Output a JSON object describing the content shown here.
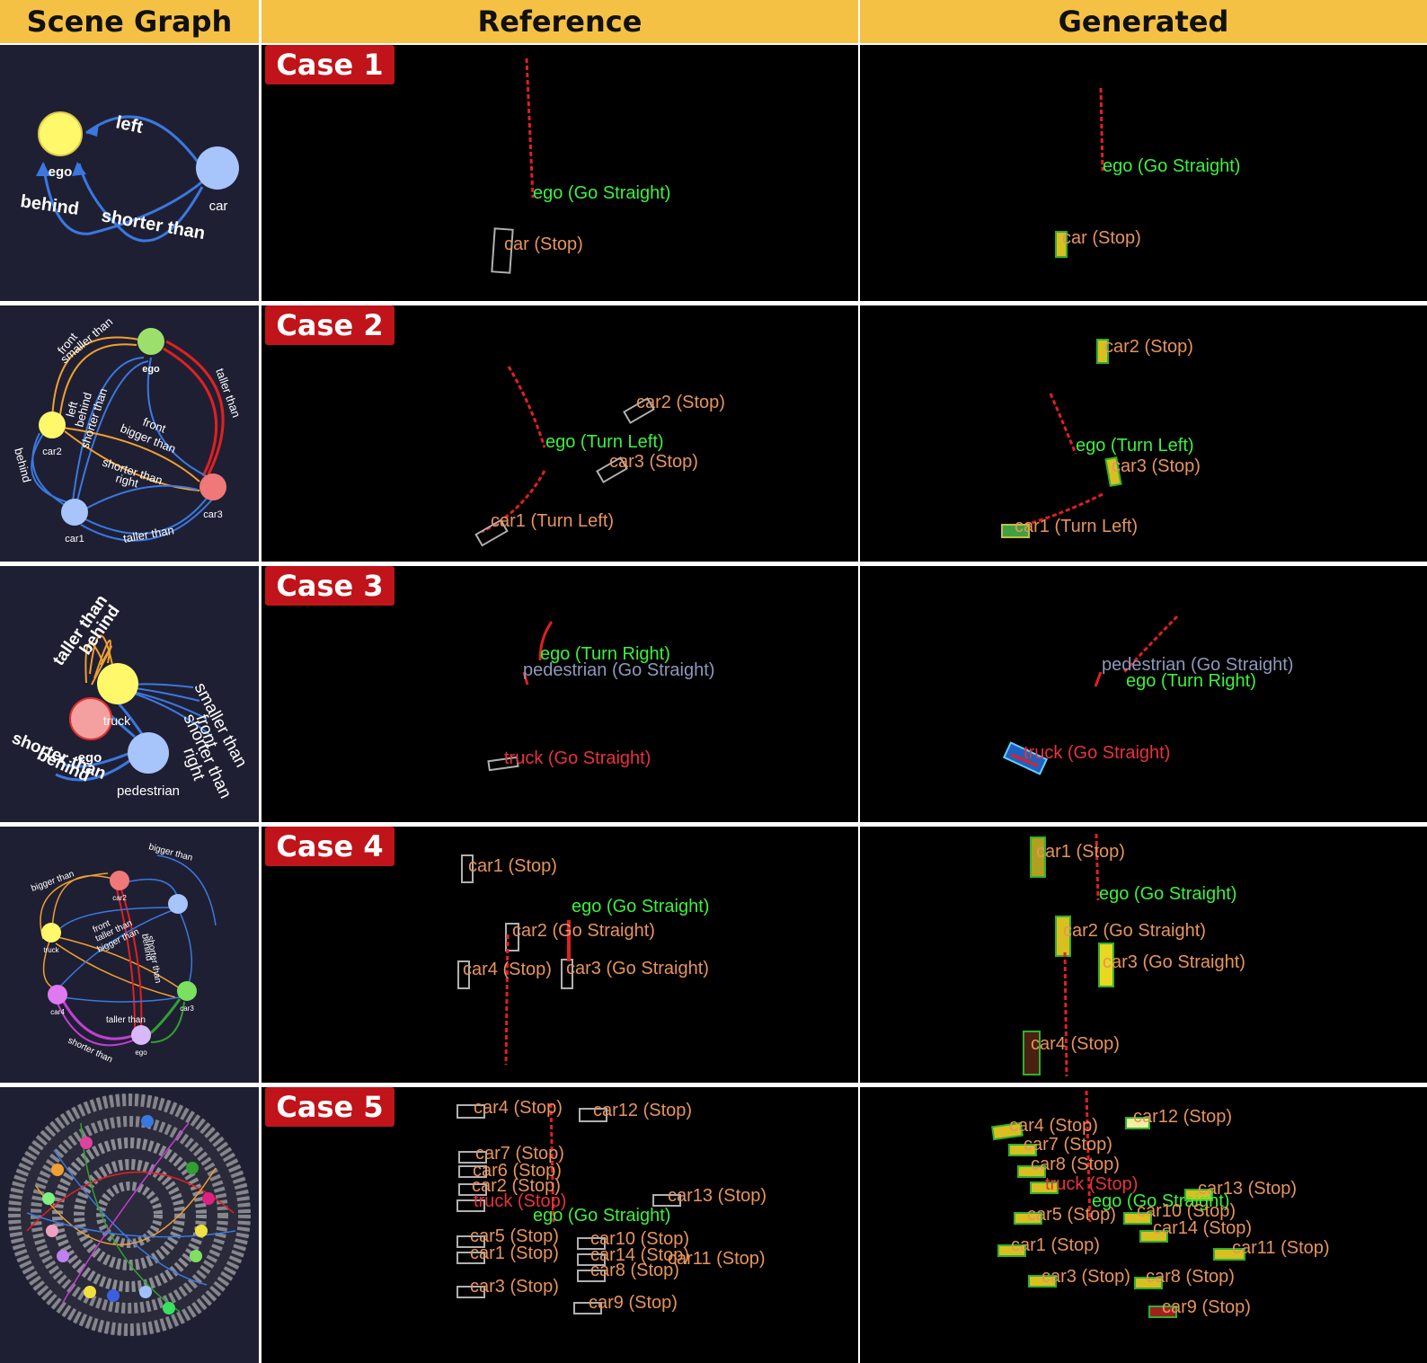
{
  "headers": {
    "scene_graph": "Scene Graph",
    "reference": "Reference",
    "generated": "Generated"
  },
  "cases": [
    {
      "badge": "Case 1",
      "graph": {
        "nodes": [
          "ego",
          "car"
        ],
        "edges": [
          "left",
          "behind",
          "shorter than"
        ]
      },
      "reference": [
        "ego (Go Straight)",
        "car (Stop)"
      ],
      "generated": [
        "ego (Go Straight)",
        "car (Stop)"
      ]
    },
    {
      "badge": "Case 2",
      "graph": {
        "nodes": [
          "ego",
          "car2",
          "car3",
          "car1"
        ],
        "edges": [
          "front",
          "smaller than",
          "left",
          "behind",
          "shorter than",
          "bigger than",
          "right",
          "taller than",
          "behind",
          "taller than"
        ]
      },
      "reference": [
        "car2 (Stop)",
        "ego (Turn Left)",
        "car3 (Stop)",
        "car1 (Turn Left)"
      ],
      "generated": [
        "car2 (Stop)",
        "ego (Turn Left)",
        "car3 (Stop)",
        "car1 (Turn Left)"
      ]
    },
    {
      "badge": "Case 3",
      "graph": {
        "nodes": [
          "ego",
          "truck",
          "pedestrian"
        ],
        "edges": [
          "taller than",
          "behind",
          "smaller than",
          "front",
          "shorter than",
          "right",
          "shorter than",
          "behind"
        ]
      },
      "reference": [
        "ego (Turn Right)",
        "pedestrian (Go Straight)",
        "truck (Go Straight)"
      ],
      "generated": [
        "pedestrian (Go Straight)",
        "ego (Turn Right)",
        "truck (Go Straight)"
      ]
    },
    {
      "badge": "Case 4",
      "graph": {
        "nodes": [
          "car2",
          "truck",
          "car4",
          "car3",
          "ego"
        ],
        "edges": [
          "bigger than",
          "front",
          "taller than",
          "bigger than",
          "shorter than",
          "behind",
          "taller than"
        ]
      },
      "reference": [
        "car1 (Stop)",
        "ego (Go Straight)",
        "car2 (Go Straight)",
        "car4 (Stop)",
        "car3 (Go Straight)"
      ],
      "generated": [
        "car1 (Stop)",
        "ego (Go Straight)",
        "car2 (Go Straight)",
        "car3 (Go Straight)",
        "car4 (Stop)"
      ]
    },
    {
      "badge": "Case 5",
      "reference": [
        "car4 (Stop)",
        "car12 (Stop)",
        "car7 (Stop)",
        "car6 (Stop)",
        "car2 (Stop)",
        "truck (Stop)",
        "car13 (Stop)",
        "ego (Go Straight)",
        "car5 (Stop)",
        "car10 (Stop)",
        "car1 (Stop)",
        "car14 (Stop)",
        "car11 (Stop)",
        "car8 (Stop)",
        "car3 (Stop)",
        "car9 (Stop)"
      ],
      "generated": [
        "car4 (Stop)",
        "car12 (Stop)",
        "car7 (Stop)",
        "car8 (Stop)",
        "truck (Stop)",
        "car13 (Stop)",
        "ego (Go Straight)",
        "car10 (Stop)",
        "car5 (Stop)",
        "car14 (Stop)",
        "car1 (Stop)",
        "car11 (Stop)",
        "car3 (Stop)",
        "car8 (Stop)",
        "car9 (Stop)"
      ]
    }
  ]
}
